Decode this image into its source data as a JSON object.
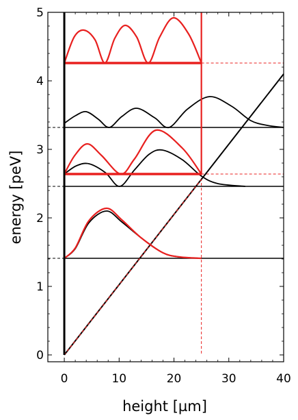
{
  "chart_data": {
    "type": "line",
    "title": "",
    "xlabel": "height [µm]",
    "ylabel": "energy [peV]",
    "xlim": [
      -3,
      40
    ],
    "ylim": [
      -0.1,
      5
    ],
    "x_ticks": [
      0,
      10,
      20,
      30,
      40
    ],
    "y_ticks": [
      0,
      1,
      2,
      3,
      4,
      5
    ],
    "grid": false,
    "legend": "none",
    "colors": {
      "black": "#000000",
      "red": "#e8201f"
    },
    "mirror_wall_x": 25,
    "potential_line": {
      "name": "",
      "points": [
        [
          0,
          0
        ],
        [
          40,
          4.1
        ]
      ]
    },
    "energy_levels": [
      1.41,
      2.46,
      3.32
    ],
    "red_energy_levels": [
      2.64,
      4.26
    ],
    "black_wavefunctions": [
      {
        "level": 1.41,
        "peaks": [
          [
            7.7,
            2.1
          ]
        ],
        "tail_end": 25
      },
      {
        "level": 2.46,
        "peaks": [
          [
            4.5,
            2.79
          ],
          [
            17.9,
            2.99
          ]
        ],
        "node_x": 10.1,
        "tail_end": 33
      },
      {
        "level": 3.32,
        "peaks": [
          [
            4.0,
            3.55
          ],
          [
            13.2,
            3.6
          ],
          [
            26.5,
            3.77
          ]
        ],
        "node_x": [
          8.2,
          19.1
        ],
        "tail_end": 40
      }
    ],
    "red_wavefunctions": [
      {
        "level": 1.41,
        "peaks": [
          [
            7.7,
            2.14
          ]
        ],
        "tail_end": 25
      },
      {
        "level": 2.64,
        "peaks": [
          [
            4.2,
            3.08
          ],
          [
            16.7,
            3.28
          ]
        ],
        "node_x": 10.3,
        "end_x": 25
      },
      {
        "level": 4.26,
        "peaks": [
          [
            3.6,
            4.74
          ],
          [
            11.1,
            4.81
          ],
          [
            19.9,
            4.92
          ]
        ],
        "node_x": [
          7.4,
          15.3
        ],
        "end_x": 25
      }
    ]
  }
}
